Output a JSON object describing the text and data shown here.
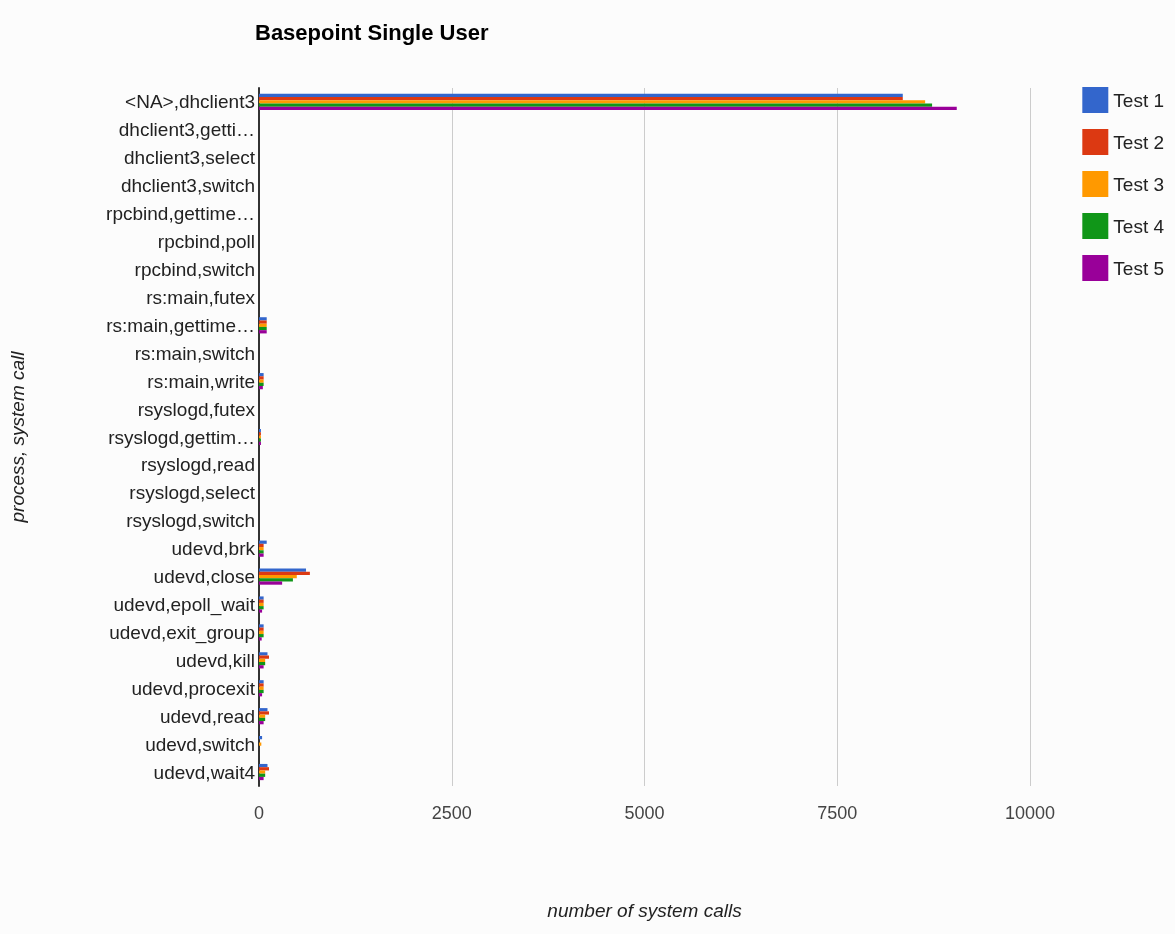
{
  "chart_data": {
    "type": "bar",
    "orientation": "horizontal",
    "title": "Basepoint Single User",
    "xlabel": "number of system calls",
    "ylabel": "process, system call",
    "categories": [
      "<NA>,dhclient3",
      "dhclient3,getti…",
      "dhclient3,select",
      "dhclient3,switch",
      "rpcbind,gettime…",
      "rpcbind,poll",
      "rpcbind,switch",
      "rs:main,futex",
      "rs:main,gettime…",
      "rs:main,switch",
      "rs:main,write",
      "rsyslogd,futex",
      "rsyslogd,gettim…",
      "rsyslogd,read",
      "rsyslogd,select",
      "rsyslogd,switch",
      "udevd,brk",
      "udevd,close",
      "udevd,epoll_wait",
      "udevd,exit_group",
      "udevd,kill",
      "udevd,procexit",
      "udevd,read",
      "udevd,switch",
      "udevd,wait4"
    ],
    "series": [
      {
        "name": "Test 1",
        "color": "#3366cc",
        "values": [
          8350,
          0,
          0,
          0,
          0,
          0,
          0,
          0,
          100,
          0,
          60,
          0,
          25,
          0,
          0,
          0,
          100,
          610,
          60,
          60,
          110,
          60,
          110,
          40,
          110
        ]
      },
      {
        "name": "Test 2",
        "color": "#dc3912",
        "values": [
          8350,
          0,
          0,
          0,
          0,
          0,
          0,
          0,
          100,
          0,
          60,
          0,
          25,
          0,
          0,
          0,
          60,
          660,
          60,
          60,
          130,
          60,
          130,
          0,
          130
        ]
      },
      {
        "name": "Test 3",
        "color": "#ff9900",
        "values": [
          8640,
          0,
          0,
          0,
          0,
          0,
          0,
          0,
          100,
          0,
          60,
          0,
          25,
          0,
          0,
          0,
          60,
          490,
          60,
          60,
          80,
          60,
          80,
          30,
          80
        ]
      },
      {
        "name": "Test 4",
        "color": "#109618",
        "values": [
          8730,
          0,
          0,
          0,
          0,
          0,
          0,
          0,
          100,
          0,
          60,
          0,
          25,
          0,
          0,
          0,
          60,
          440,
          60,
          60,
          80,
          60,
          80,
          0,
          80
        ]
      },
      {
        "name": "Test 5",
        "color": "#990099",
        "values": [
          9050,
          0,
          0,
          0,
          0,
          0,
          0,
          0,
          100,
          0,
          50,
          0,
          25,
          0,
          0,
          0,
          60,
          300,
          40,
          35,
          60,
          40,
          60,
          0,
          60
        ]
      }
    ],
    "xlim": [
      0,
      10000
    ],
    "xticks": [
      0,
      2500,
      5000,
      7500,
      10000
    ],
    "grid": "x",
    "legend": "top right"
  }
}
